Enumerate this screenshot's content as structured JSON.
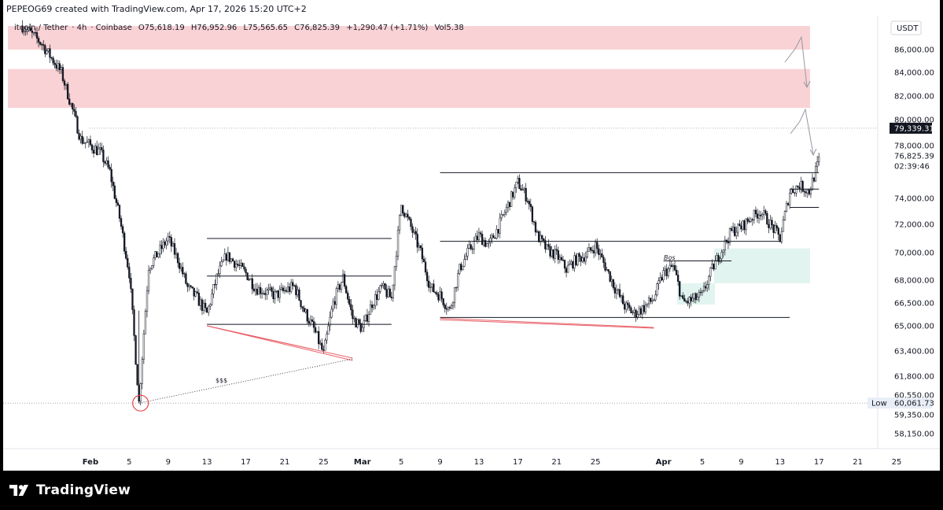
{
  "header": {
    "created_note": "PEPEOG69 created with TradingView.com, Apr 17, 2026 15:20 UTC+2"
  },
  "symbol_line": {
    "name": "Bitcoin / Tether",
    "name_visible": "itcoin / Tether",
    "interval": "4h",
    "exchange": "Coinbase",
    "open": "O75,618.19",
    "high": "H76,952.96",
    "low": "L75,565.65",
    "close": "C76,825.39",
    "change": "+1,290.47 (+1.71%)",
    "volume": "Vol5.38"
  },
  "currency_badge": "USDT",
  "price_axis": {
    "ticks": [
      "86,000.00",
      "84,000.00",
      "82,000.00",
      "80,000.00",
      "78,000.00",
      "74,000.00",
      "72,000.00",
      "70,000.00",
      "68,000.00",
      "66,500.00",
      "65,000.00",
      "63,400.00",
      "61,800.00",
      "60,550.00",
      "59,350.00",
      "58,150.00"
    ],
    "current_price": "76,825.39",
    "countdown": "02:39:46",
    "marker_price": "79,339.31",
    "low_label": "Low",
    "low_price": "60,061.73"
  },
  "time_axis": {
    "labels": [
      "Feb",
      "5",
      "9",
      "13",
      "17",
      "21",
      "25",
      "Mar",
      "5",
      "9",
      "13",
      "17",
      "21",
      "25",
      "Apr",
      "5",
      "9",
      "13",
      "17",
      "21",
      "25"
    ]
  },
  "annotations": {
    "bos_label": "Bos",
    "liquidity_label": "$$$"
  },
  "colors": {
    "supply_zone": "#f9d2d5",
    "demand_zone": "#e2f4ef",
    "candle_up": "#ffffff",
    "candle_down": "#131722",
    "trendline": "#e8626a",
    "marker_circle": "#e8404a"
  },
  "footer": {
    "brand": "TradingView",
    "logo_icon": "tradingview-logo-icon"
  },
  "chart_data": {
    "type": "candlestick",
    "symbol": "Bitcoin / Tether",
    "timeframe": "4h",
    "currency": "USDT",
    "ylim": [
      57500,
      88000
    ],
    "x_start": "2026-01-25",
    "x_ticks": [
      "Feb",
      "5",
      "9",
      "13",
      "17",
      "21",
      "25",
      "Mar",
      "5",
      "9",
      "13",
      "17",
      "21",
      "25",
      "Apr",
      "5",
      "9",
      "13",
      "17",
      "21",
      "25"
    ],
    "price_path": [
      [
        "2026-01-25",
        88000
      ],
      [
        "2026-01-27",
        86500
      ],
      [
        "2026-01-29",
        84000
      ],
      [
        "2026-01-31",
        78500
      ],
      [
        "2026-02-02",
        77500
      ],
      [
        "2026-02-03",
        76000
      ],
      [
        "2026-02-04",
        72500
      ],
      [
        "2026-02-05",
        68500
      ],
      [
        "2026-02-06",
        60100
      ],
      [
        "2026-02-07",
        69000
      ],
      [
        "2026-02-08",
        70000
      ],
      [
        "2026-02-09",
        71000
      ],
      [
        "2026-02-10",
        69500
      ],
      [
        "2026-02-11",
        67500
      ],
      [
        "2026-02-12",
        66800
      ],
      [
        "2026-02-13",
        65800
      ],
      [
        "2026-02-14",
        68200
      ],
      [
        "2026-02-15",
        69800
      ],
      [
        "2026-02-16",
        69200
      ],
      [
        "2026-02-17",
        68500
      ],
      [
        "2026-02-18",
        67500
      ],
      [
        "2026-02-20",
        67000
      ],
      [
        "2026-02-22",
        67600
      ],
      [
        "2026-02-23",
        66000
      ],
      [
        "2026-02-24",
        64800
      ],
      [
        "2026-02-25",
        63200
      ],
      [
        "2026-02-26",
        66500
      ],
      [
        "2026-02-27",
        68200
      ],
      [
        "2026-02-28",
        65500
      ],
      [
        "2026-03-01",
        64800
      ],
      [
        "2026-03-02",
        66500
      ],
      [
        "2026-03-03",
        67500
      ],
      [
        "2026-03-04",
        66800
      ],
      [
        "2026-03-05",
        73500
      ],
      [
        "2026-03-06",
        71800
      ],
      [
        "2026-03-07",
        70000
      ],
      [
        "2026-03-08",
        67500
      ],
      [
        "2026-03-09",
        67000
      ],
      [
        "2026-03-10",
        66000
      ],
      [
        "2026-03-11",
        68800
      ],
      [
        "2026-03-12",
        70200
      ],
      [
        "2026-03-13",
        71200
      ],
      [
        "2026-03-14",
        70500
      ],
      [
        "2026-03-15",
        71800
      ],
      [
        "2026-03-16",
        73500
      ],
      [
        "2026-03-17",
        75200
      ],
      [
        "2026-03-18",
        74000
      ],
      [
        "2026-03-19",
        71200
      ],
      [
        "2026-03-20",
        70200
      ],
      [
        "2026-03-21",
        69800
      ],
      [
        "2026-03-22",
        68800
      ],
      [
        "2026-03-23",
        69500
      ],
      [
        "2026-03-24",
        69800
      ],
      [
        "2026-03-25",
        70500
      ],
      [
        "2026-03-26",
        69000
      ],
      [
        "2026-03-27",
        67500
      ],
      [
        "2026-03-28",
        66300
      ],
      [
        "2026-03-29",
        65800
      ],
      [
        "2026-03-30",
        66200
      ],
      [
        "2026-03-31",
        66800
      ],
      [
        "2026-04-01",
        68500
      ],
      [
        "2026-04-02",
        69000
      ],
      [
        "2026-04-03",
        66500
      ],
      [
        "2026-04-04",
        66700
      ],
      [
        "2026-04-05",
        67000
      ],
      [
        "2026-04-06",
        68800
      ],
      [
        "2026-04-07",
        70200
      ],
      [
        "2026-04-08",
        71500
      ],
      [
        "2026-04-09",
        71800
      ],
      [
        "2026-04-10",
        72500
      ],
      [
        "2026-04-11",
        73000
      ],
      [
        "2026-04-12",
        72000
      ],
      [
        "2026-04-13",
        71000
      ],
      [
        "2026-04-14",
        74500
      ],
      [
        "2026-04-15",
        75000
      ],
      [
        "2026-04-16",
        74500
      ],
      [
        "2026-04-17",
        76825
      ]
    ],
    "last_close": 76825.39,
    "period_low": 60061.73,
    "horizontal_marker": 79339.31,
    "supply_zones": [
      [
        86000,
        88000
      ],
      [
        81000,
        84300
      ]
    ],
    "demand_zones": [
      [
        67800,
        70300
      ]
    ],
    "annotations": [
      "Bos",
      "$$$",
      "Low"
    ],
    "grid": false
  }
}
